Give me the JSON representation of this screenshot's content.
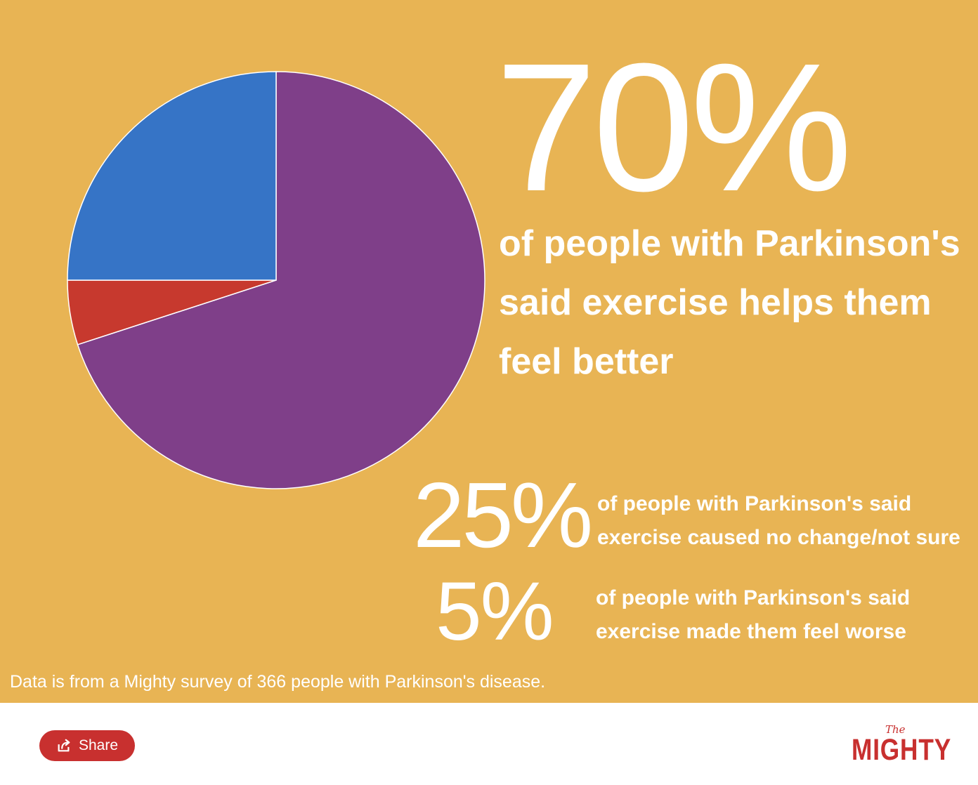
{
  "headline": {
    "percent": "70%",
    "description": "of people with Parkinson's said exercise helps them feel better"
  },
  "stats": [
    {
      "percent": "25%",
      "description": "of people with Parkinson's said exercise caused no change/not sure"
    },
    {
      "percent": "5%",
      "description": "of people with Parkinson's said exercise made them feel worse"
    }
  ],
  "footnote": "Data is from a Mighty survey of 366 people with Parkinson's disease.",
  "share_button": {
    "label": "Share",
    "icon": "share-icon"
  },
  "logo": {
    "small": "The",
    "word": "MIGHTY"
  },
  "colors": {
    "background": "#e8b454",
    "accent": "#c8302f"
  },
  "chart_data": {
    "type": "pie",
    "start_angle": "12 o'clock",
    "direction": "clockwise",
    "slices": [
      {
        "value": 70,
        "color": "#7f3f89"
      },
      {
        "value": 5,
        "color": "#c7392e"
      },
      {
        "value": 25,
        "color": "#3674c6"
      }
    ]
  }
}
